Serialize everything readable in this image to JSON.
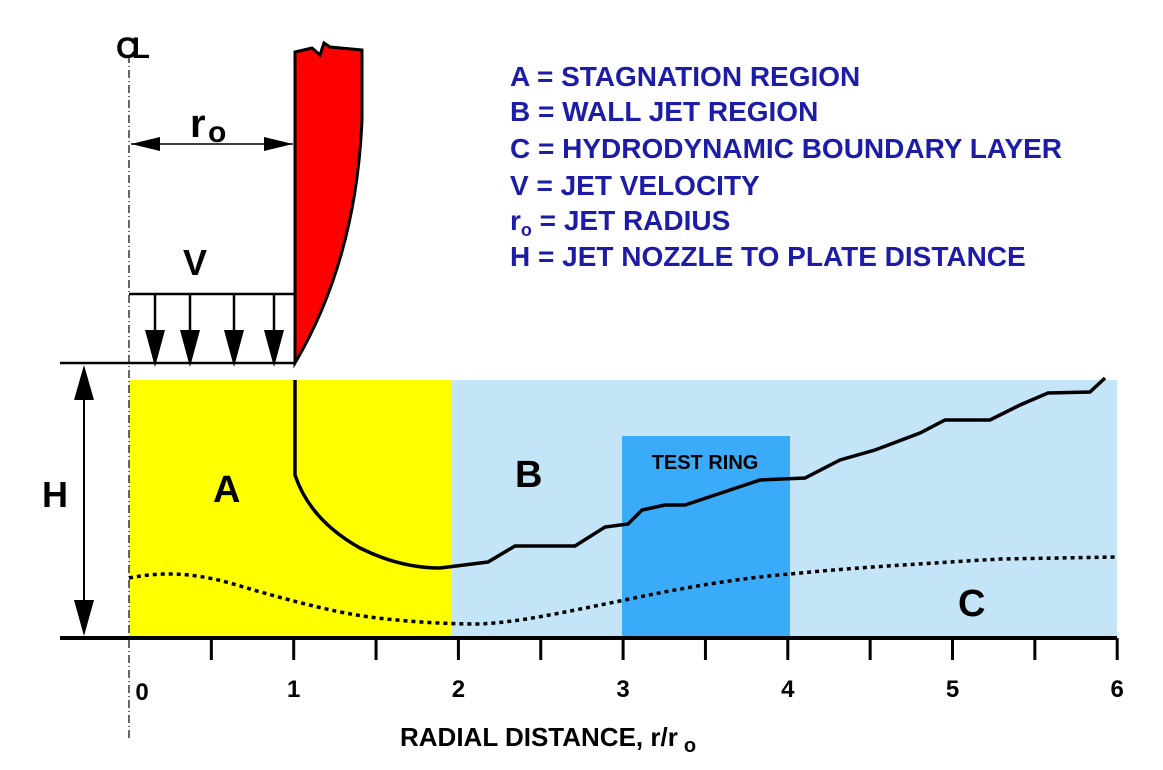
{
  "labels": {
    "centerline": "CL",
    "jet_radius": "r",
    "jet_radius_sub": "o",
    "velocity": "V",
    "height": "H",
    "region_a": "A",
    "region_b": "B",
    "region_c": "C",
    "test_ring": "TEST RING"
  },
  "legend": [
    {
      "key": "A",
      "text": "A = STAGNATION REGION"
    },
    {
      "key": "B",
      "text": "B = WALL JET REGION"
    },
    {
      "key": "C",
      "text": "C = HYDRODYNAMIC BOUNDARY LAYER"
    },
    {
      "key": "V",
      "text": "V  = JET VELOCITY"
    },
    {
      "key": "r",
      "text": "r",
      "sub": "o",
      "rest": " = JET RADIUS"
    },
    {
      "key": "H",
      "text": "H = JET NOZZLE TO PLATE DISTANCE"
    }
  ],
  "axis": {
    "ticks": [
      "0",
      "1",
      "2",
      "3",
      "4",
      "5",
      "6"
    ],
    "title": "RADIAL DISTANCE, r/r",
    "title_sub": "o",
    "range": [
      0,
      6
    ]
  },
  "colors": {
    "stagnation": "#ffff00",
    "wall_jet": "#c4e4f8",
    "test_ring": "#3aabf8",
    "nozzle": "#ff0000",
    "legend_text": "#1c1ca8"
  }
}
